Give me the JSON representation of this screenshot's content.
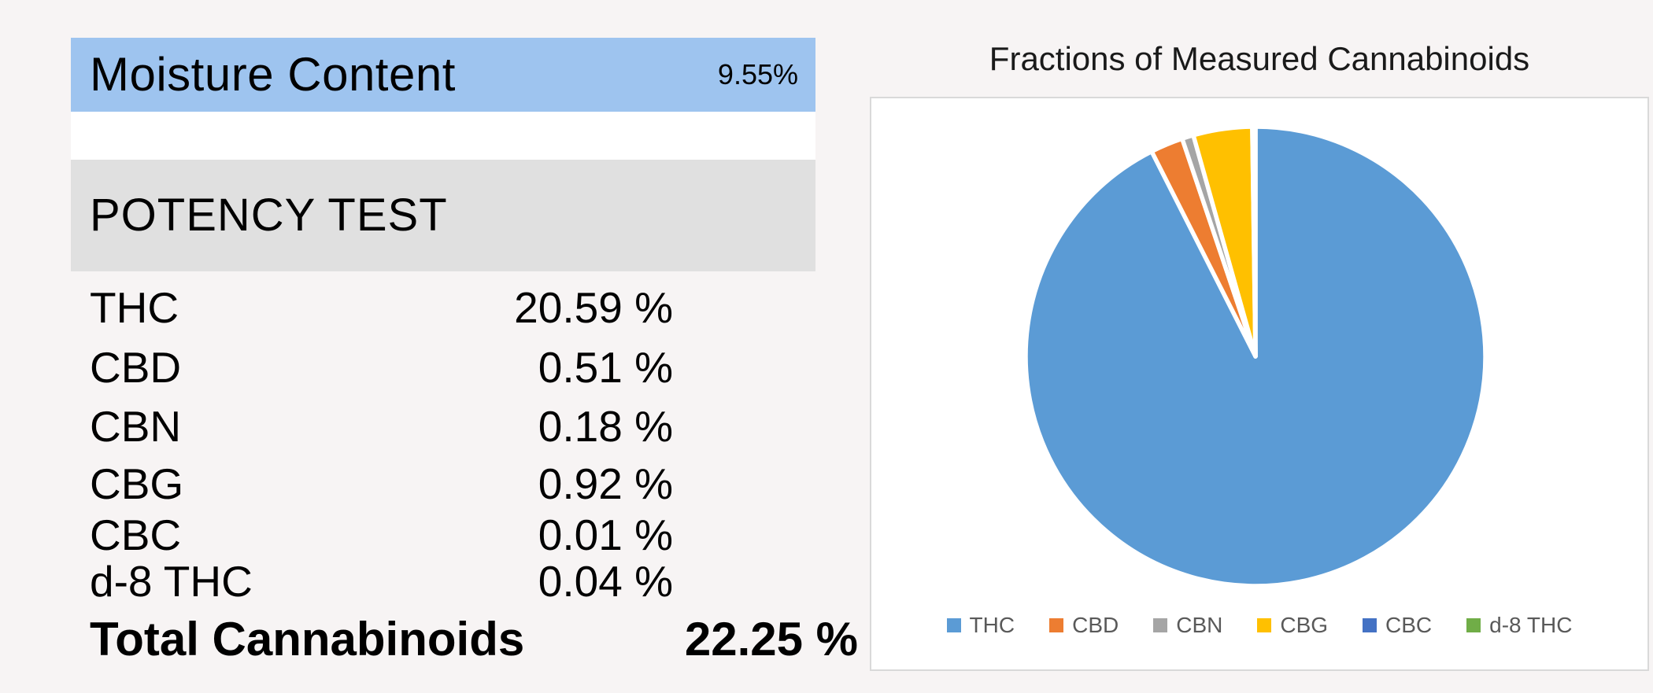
{
  "moisture": {
    "label": "Moisture Content",
    "value": "9.55%"
  },
  "potency": {
    "header": "POTENCY TEST",
    "rows": [
      {
        "label": "THC",
        "value": "20.59 %"
      },
      {
        "label": "CBD",
        "value": "0.51 %"
      },
      {
        "label": "CBN",
        "value": "0.18 %"
      },
      {
        "label": "CBG",
        "value": "0.92 %"
      },
      {
        "label": "CBC",
        "value": "0.01 %"
      },
      {
        "label": "d-8 THC",
        "value": "0.04 %"
      }
    ],
    "total": {
      "label": "Total Cannabinoids",
      "value": "22.25 %"
    }
  },
  "chart_data": {
    "type": "pie",
    "title": "Fractions of Measured Cannabinoids",
    "categories": [
      "THC",
      "CBD",
      "CBN",
      "CBG",
      "CBC",
      "d-8 THC"
    ],
    "values": [
      20.59,
      0.51,
      0.18,
      0.92,
      0.01,
      0.04
    ],
    "colors": [
      "#5B9BD5",
      "#ED7D31",
      "#A5A5A5",
      "#FFC000",
      "#4472C4",
      "#70AD47"
    ],
    "start_angle_deg": 0,
    "direction": "clockwise",
    "legend_position": "bottom",
    "slice_border_color": "#FFFFFF"
  },
  "ui_colors": {
    "moisture_bar_bg": "#9EC4EF",
    "potency_bar_bg": "#E0E0E0",
    "page_bg": "#F7F4F4",
    "chart_border": "#D9D9D9",
    "legend_text": "#595959"
  }
}
